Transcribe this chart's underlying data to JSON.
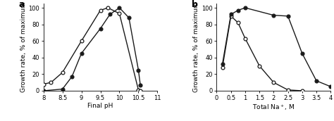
{
  "panel_a": {
    "xlabel": "Final pH",
    "ylabel": "Growth rate, % of maximum",
    "label": "a",
    "xlim": [
      8.0,
      11.0
    ],
    "ylim": [
      0,
      105
    ],
    "xticks": [
      8.0,
      8.5,
      9.0,
      9.5,
      10.0,
      10.5,
      11.0
    ],
    "xticklabels": [
      "8",
      "8.5",
      "9",
      "9.5",
      "10",
      "10.5",
      "11"
    ],
    "yticks": [
      0,
      20,
      40,
      60,
      80,
      100
    ],
    "yticklabels": [
      "0",
      "20",
      "40",
      "60",
      "80",
      "100"
    ],
    "open_circle": {
      "x": [
        8.0,
        8.2,
        8.5,
        9.0,
        9.5,
        9.7,
        10.0,
        10.5,
        10.55
      ],
      "y": [
        8,
        10,
        22,
        60,
        97,
        100,
        93,
        1,
        0
      ]
    },
    "filled_square": {
      "x": [
        8.0,
        8.5,
        8.75,
        9.0,
        9.5,
        9.75,
        10.0,
        10.25,
        10.5,
        10.55
      ],
      "y": [
        0,
        2,
        17,
        45,
        75,
        92,
        100,
        88,
        25,
        7
      ]
    }
  },
  "panel_b": {
    "xlabel": "Total Na$^+$, M",
    "ylabel": "Growth rate, % of maximum",
    "label": "b",
    "xlim": [
      0.0,
      4.0
    ],
    "ylim": [
      0,
      105
    ],
    "xticks": [
      0.0,
      0.5,
      1.0,
      1.5,
      2.0,
      2.5,
      3.0,
      3.5,
      4.0
    ],
    "xticklabels": [
      "0",
      "0.5",
      "1",
      "1.5",
      "2",
      "2.5",
      "3",
      "3.5",
      "4"
    ],
    "yticks": [
      0,
      20,
      40,
      60,
      80,
      100
    ],
    "yticklabels": [
      "0",
      "20",
      "40",
      "60",
      "80",
      "100"
    ],
    "open_circle": {
      "x": [
        0.2,
        0.5,
        0.75,
        1.0,
        1.5,
        2.0,
        2.5,
        3.0
      ],
      "y": [
        28,
        90,
        82,
        63,
        30,
        10,
        1,
        0
      ]
    },
    "filled_square": {
      "x": [
        0.2,
        0.5,
        0.75,
        1.0,
        2.0,
        2.5,
        3.0,
        3.5,
        4.0
      ],
      "y": [
        32,
        92,
        97,
        100,
        91,
        90,
        45,
        12,
        5
      ]
    }
  },
  "line_color": "#1a1a1a",
  "open_marker": "o",
  "filled_marker": "o",
  "markersize": 3.5,
  "linewidth": 1.0,
  "tick_fontsize": 6.0,
  "label_fontsize": 6.5,
  "panel_label_fontsize": 9
}
